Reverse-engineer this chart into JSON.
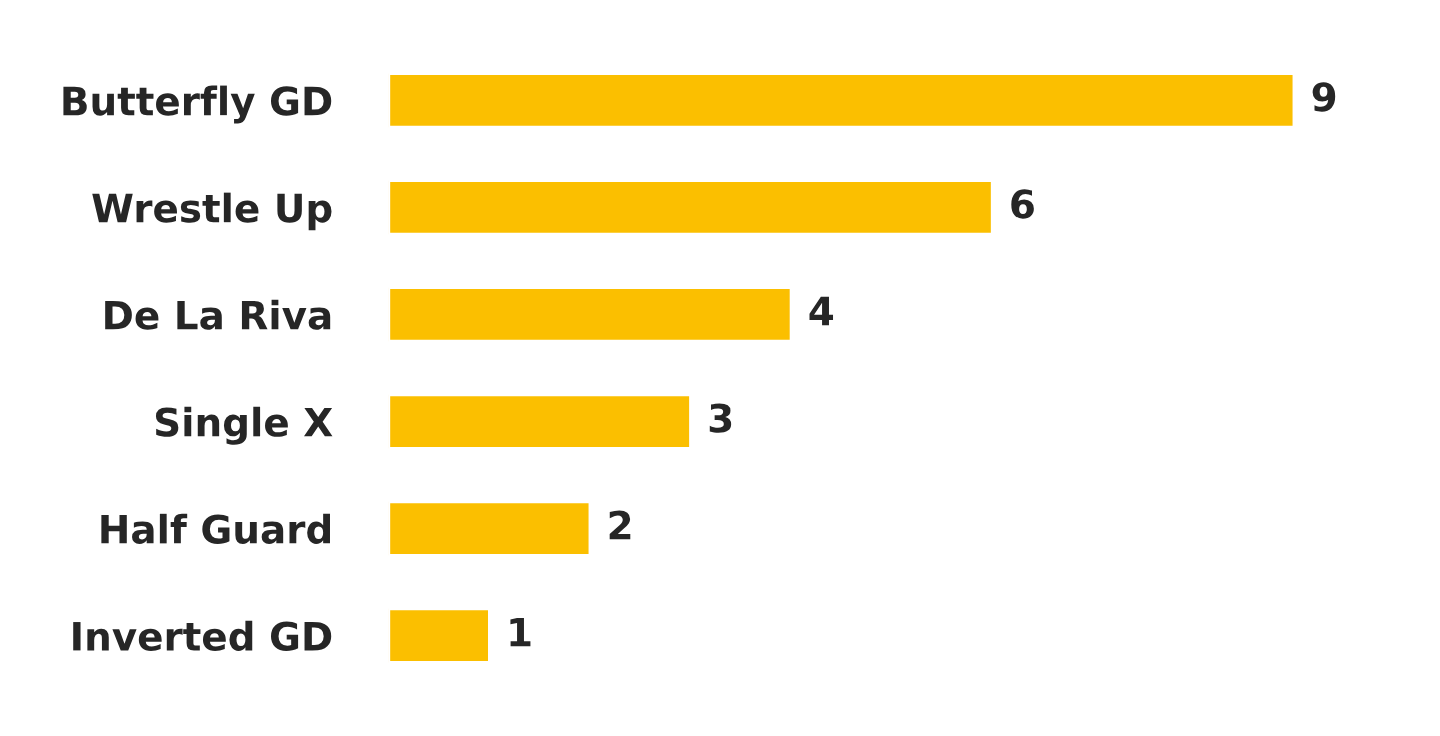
{
  "chart_data": {
    "type": "bar",
    "orientation": "horizontal",
    "categories": [
      "Butterfly GD",
      "Wrestle Up",
      "De La Riva",
      "Single X",
      "Half Guard",
      "Inverted GD"
    ],
    "values": [
      9,
      6,
      4,
      3,
      2,
      1
    ],
    "color": "#fbbf00",
    "data_labels": true,
    "grid": false,
    "legend": false,
    "tick_labels": "y"
  }
}
